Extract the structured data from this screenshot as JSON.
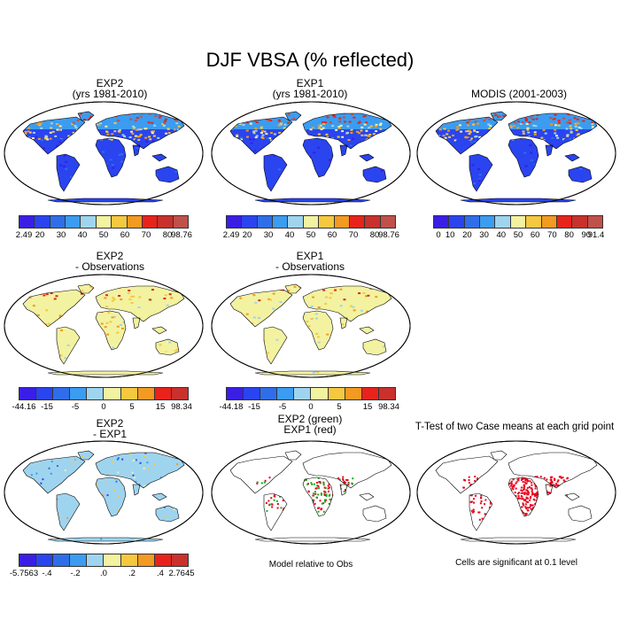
{
  "title": "DJF VBSA (% reflected)",
  "panels": {
    "exp2": {
      "line1": "EXP2",
      "line2": "(yrs 1981-2010)"
    },
    "exp1": {
      "line1": "EXP1",
      "line2": "(yrs 1981-2010)"
    },
    "modis": {
      "line1": "MODIS (2001-2003)"
    },
    "exp2_obs": {
      "line1": "EXP2",
      "line2": "- Observations"
    },
    "exp1_obs": {
      "line1": "EXP1",
      "line2": "- Observations"
    },
    "exp2_exp1": {
      "line1": "EXP2",
      "line2": "- EXP1"
    },
    "green_red": {
      "line1": "EXP2 (green)",
      "line2": "EXP1 (red)"
    },
    "ttest": {
      "line1": "T-Test of two Case means at each grid point"
    }
  },
  "captions": {
    "model_rel": "Model relative to Obs",
    "significance": "Cells are significant at 0.1 level"
  },
  "colorbars": {
    "abs_model": {
      "labels": [
        "2.49",
        "20",
        "30",
        "40",
        "50",
        "60",
        "70",
        "80",
        "98.76"
      ]
    },
    "modis": {
      "labels": [
        "0",
        "10",
        "20",
        "30",
        "40",
        "50",
        "60",
        "70",
        "80",
        "90",
        "91.4"
      ]
    },
    "diff_exp2": {
      "labels": [
        "-44.16",
        "-15",
        "-5",
        "0",
        "5",
        "15",
        "98.34"
      ]
    },
    "diff_exp1": {
      "labels": [
        "-44.18",
        "-15",
        "-5",
        "0",
        "5",
        "15",
        "98.34"
      ]
    },
    "exp_diff": {
      "labels": [
        "-5.7563",
        "-.4",
        "-.2",
        ".0",
        ".2",
        ".4",
        "2.7645"
      ]
    }
  },
  "colors": {
    "abs_scale": [
      "#3a1ee6",
      "#2a44f0",
      "#2f6ee8",
      "#3b9cf0",
      "#9fd4ef",
      "#f3f2a0",
      "#f5c840",
      "#f29a22",
      "#e8231c",
      "#c8312c",
      "#c0504a"
    ],
    "diff_scale": [
      "#3a1ee6",
      "#2a44f0",
      "#2f6ee8",
      "#3b9cf0",
      "#9fd4ef",
      "#f3f2a0",
      "#f5c840",
      "#f29a22",
      "#e8231c",
      "#c8312c"
    ],
    "sig_red": "#e8001a",
    "sig_green": "#1aa81a"
  }
}
